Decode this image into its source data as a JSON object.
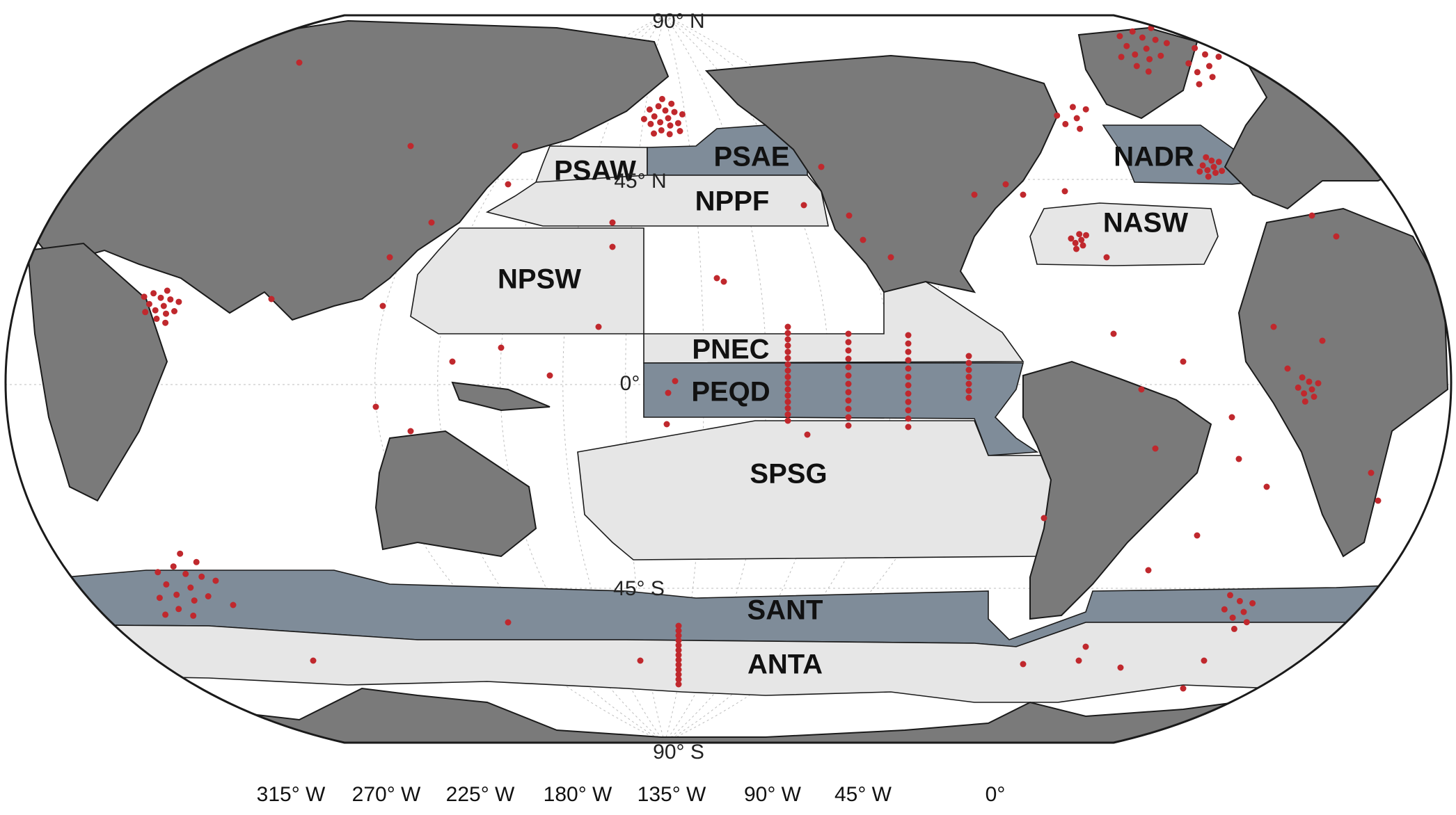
{
  "map": {
    "colors": {
      "ocean": "#ffffff",
      "land": "#7a7a7a",
      "province_light": "#e6e6e6",
      "province_dark": "#7f8c99",
      "sample_point": "#c0282d",
      "outline": "#1a1a1a"
    },
    "lat_labels": {
      "north_pole": "90° N",
      "lat_45n": "45° N",
      "equator": "0°",
      "lat_45s": "45° S",
      "south_pole": "90° S"
    },
    "lon_labels": [
      "315° W",
      "270° W",
      "225° W",
      "180° W",
      "135° W",
      "90° W",
      "45° W",
      "0°"
    ],
    "provinces": {
      "psaw": {
        "label": "PSAW",
        "shade": "light"
      },
      "psae": {
        "label": "PSAE",
        "shade": "dark"
      },
      "nppf": {
        "label": "NPPF",
        "shade": "light"
      },
      "npsw": {
        "label": "NPSW",
        "shade": "light"
      },
      "pnec": {
        "label": "PNEC",
        "shade": "light"
      },
      "peqd": {
        "label": "PEQD",
        "shade": "dark"
      },
      "spsg": {
        "label": "SPSG",
        "shade": "light"
      },
      "sant": {
        "label": "SANT",
        "shade": "dark"
      },
      "anta": {
        "label": "ANTA",
        "shade": "light"
      },
      "nadr": {
        "label": "NADR",
        "shade": "dark"
      },
      "nasw": {
        "label": "NASW",
        "shade": "light"
      }
    }
  }
}
